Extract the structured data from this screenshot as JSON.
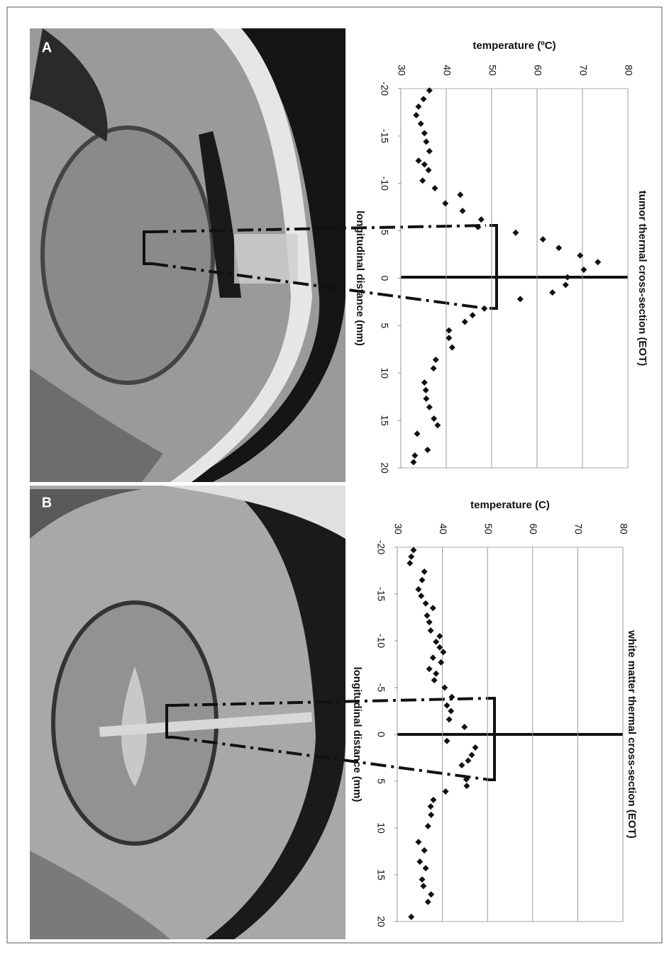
{
  "chart_data": [
    {
      "type": "scatter",
      "panel": "A",
      "title": "tumor thermal cross-section (EOT)",
      "xlabel": "longitudinal distance (mm)",
      "ylabel": "temperature (ºC)",
      "color": "#111111",
      "x": [
        -19.8,
        -18.9,
        -18.1,
        -17.2,
        -16.3,
        -15.3,
        -14.4,
        -13.4,
        -12.4,
        -12.0,
        -11.4,
        -10.3,
        -9.5,
        -8.8,
        -7.9,
        -7.1,
        -6.2,
        -5.4,
        -4.8,
        -4.1,
        -3.2,
        -2.4,
        -1.7,
        -0.9,
        -0.1,
        0.7,
        1.5,
        2.2,
        3.2,
        3.9,
        4.6,
        5.5,
        6.3,
        7.3,
        8.6,
        9.5,
        11.0,
        11.8,
        12.7,
        13.6,
        14.8,
        15.5,
        16.4,
        18.1,
        18.7,
        19.4
      ],
      "values": [
        36.3,
        35.0,
        33.9,
        33.4,
        34.4,
        35.2,
        35.6,
        36.3,
        33.9,
        35.2,
        36.1,
        34.8,
        37.5,
        43.1,
        39.8,
        43.6,
        47.7,
        47.0,
        55.3,
        61.3,
        64.8,
        69.5,
        73.4,
        70.3,
        66.7,
        66.3,
        63.4,
        56.3,
        48.4,
        45.8,
        44.1,
        40.6,
        40.6,
        41.3,
        37.7,
        37.2,
        35.2,
        35.5,
        35.6,
        36.3,
        37.3,
        38.1,
        33.6,
        35.9,
        33.1,
        32.8
      ],
      "xlim": [
        -20,
        20
      ],
      "xticks": [
        -20,
        -15,
        -10,
        -5,
        0,
        5,
        10,
        15,
        20
      ],
      "ylim": [
        30,
        80
      ],
      "yticks": [
        30,
        40,
        50,
        60,
        70,
        80
      ],
      "grid": true
    },
    {
      "type": "scatter",
      "panel": "B",
      "title": "white matter thermal cross-section (EOT)",
      "xlabel": "longitudinal distance (mm)",
      "ylabel": "temperature (C)",
      "color": "#111111",
      "x": [
        -19.7,
        -19.0,
        -18.3,
        -17.4,
        -16.5,
        -15.5,
        -14.8,
        -14.0,
        -13.5,
        -12.7,
        -12.0,
        -11.1,
        -10.5,
        -9.9,
        -9.3,
        -8.8,
        -8.2,
        -7.7,
        -7.0,
        -6.5,
        -5.8,
        -5.0,
        -4.0,
        -3.1,
        -2.5,
        -1.6,
        -0.8,
        0.7,
        1.4,
        2.2,
        2.8,
        3.3,
        4.8,
        5.5,
        6.1,
        7.0,
        7.7,
        8.6,
        9.8,
        11.5,
        12.4,
        13.6,
        14.3,
        15.5,
        16.2,
        17.1,
        17.9,
        19.5
      ],
      "values": [
        33.6,
        33.1,
        32.8,
        36.0,
        35.5,
        34.7,
        35.3,
        36.3,
        37.9,
        36.6,
        37.1,
        37.4,
        39.4,
        38.6,
        39.4,
        40.2,
        37.9,
        39.7,
        37.1,
        38.6,
        38.2,
        40.5,
        42.1,
        41.0,
        41.9,
        41.5,
        44.9,
        41.0,
        47.3,
        46.5,
        45.7,
        44.3,
        45.3,
        45.4,
        40.7,
        38.0,
        37.4,
        37.5,
        36.8,
        34.7,
        36.0,
        35.0,
        36.3,
        35.5,
        35.8,
        37.5,
        36.8,
        33.1
      ],
      "xlim": [
        -20,
        20
      ],
      "xticks": [
        -20,
        -15,
        -10,
        -5,
        0,
        5,
        10,
        15,
        20
      ],
      "ylim": [
        30,
        80
      ],
      "yticks": [
        30,
        40,
        50,
        60,
        70,
        80
      ],
      "grid": true
    }
  ]
}
